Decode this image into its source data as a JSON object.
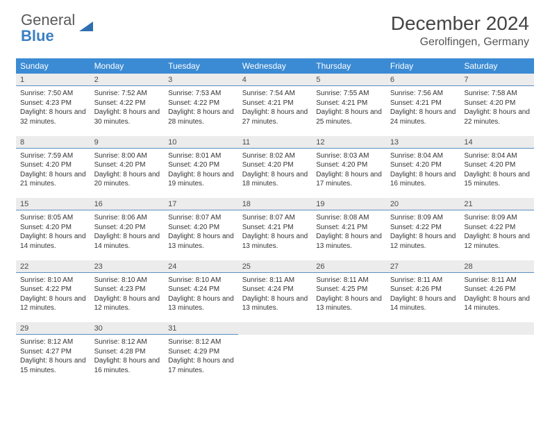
{
  "logo": {
    "text1": "General",
    "text2": "Blue"
  },
  "title": "December 2024",
  "location": "Gerolfingen, Germany",
  "colors": {
    "header_bg": "#3b8bd4",
    "header_text": "#ffffff",
    "daynum_bg": "#ececec",
    "daynum_border": "#5c8fbf",
    "body_text": "#333333",
    "logo_gray": "#5a5a5a",
    "logo_blue": "#3b7fc4"
  },
  "weekdays": [
    "Sunday",
    "Monday",
    "Tuesday",
    "Wednesday",
    "Thursday",
    "Friday",
    "Saturday"
  ],
  "weeks": [
    [
      {
        "n": "1",
        "sr": "7:50 AM",
        "ss": "4:23 PM",
        "dl": "8 hours and 32 minutes."
      },
      {
        "n": "2",
        "sr": "7:52 AM",
        "ss": "4:22 PM",
        "dl": "8 hours and 30 minutes."
      },
      {
        "n": "3",
        "sr": "7:53 AM",
        "ss": "4:22 PM",
        "dl": "8 hours and 28 minutes."
      },
      {
        "n": "4",
        "sr": "7:54 AM",
        "ss": "4:21 PM",
        "dl": "8 hours and 27 minutes."
      },
      {
        "n": "5",
        "sr": "7:55 AM",
        "ss": "4:21 PM",
        "dl": "8 hours and 25 minutes."
      },
      {
        "n": "6",
        "sr": "7:56 AM",
        "ss": "4:21 PM",
        "dl": "8 hours and 24 minutes."
      },
      {
        "n": "7",
        "sr": "7:58 AM",
        "ss": "4:20 PM",
        "dl": "8 hours and 22 minutes."
      }
    ],
    [
      {
        "n": "8",
        "sr": "7:59 AM",
        "ss": "4:20 PM",
        "dl": "8 hours and 21 minutes."
      },
      {
        "n": "9",
        "sr": "8:00 AM",
        "ss": "4:20 PM",
        "dl": "8 hours and 20 minutes."
      },
      {
        "n": "10",
        "sr": "8:01 AM",
        "ss": "4:20 PM",
        "dl": "8 hours and 19 minutes."
      },
      {
        "n": "11",
        "sr": "8:02 AM",
        "ss": "4:20 PM",
        "dl": "8 hours and 18 minutes."
      },
      {
        "n": "12",
        "sr": "8:03 AM",
        "ss": "4:20 PM",
        "dl": "8 hours and 17 minutes."
      },
      {
        "n": "13",
        "sr": "8:04 AM",
        "ss": "4:20 PM",
        "dl": "8 hours and 16 minutes."
      },
      {
        "n": "14",
        "sr": "8:04 AM",
        "ss": "4:20 PM",
        "dl": "8 hours and 15 minutes."
      }
    ],
    [
      {
        "n": "15",
        "sr": "8:05 AM",
        "ss": "4:20 PM",
        "dl": "8 hours and 14 minutes."
      },
      {
        "n": "16",
        "sr": "8:06 AM",
        "ss": "4:20 PM",
        "dl": "8 hours and 14 minutes."
      },
      {
        "n": "17",
        "sr": "8:07 AM",
        "ss": "4:20 PM",
        "dl": "8 hours and 13 minutes."
      },
      {
        "n": "18",
        "sr": "8:07 AM",
        "ss": "4:21 PM",
        "dl": "8 hours and 13 minutes."
      },
      {
        "n": "19",
        "sr": "8:08 AM",
        "ss": "4:21 PM",
        "dl": "8 hours and 13 minutes."
      },
      {
        "n": "20",
        "sr": "8:09 AM",
        "ss": "4:22 PM",
        "dl": "8 hours and 12 minutes."
      },
      {
        "n": "21",
        "sr": "8:09 AM",
        "ss": "4:22 PM",
        "dl": "8 hours and 12 minutes."
      }
    ],
    [
      {
        "n": "22",
        "sr": "8:10 AM",
        "ss": "4:22 PM",
        "dl": "8 hours and 12 minutes."
      },
      {
        "n": "23",
        "sr": "8:10 AM",
        "ss": "4:23 PM",
        "dl": "8 hours and 12 minutes."
      },
      {
        "n": "24",
        "sr": "8:10 AM",
        "ss": "4:24 PM",
        "dl": "8 hours and 13 minutes."
      },
      {
        "n": "25",
        "sr": "8:11 AM",
        "ss": "4:24 PM",
        "dl": "8 hours and 13 minutes."
      },
      {
        "n": "26",
        "sr": "8:11 AM",
        "ss": "4:25 PM",
        "dl": "8 hours and 13 minutes."
      },
      {
        "n": "27",
        "sr": "8:11 AM",
        "ss": "4:26 PM",
        "dl": "8 hours and 14 minutes."
      },
      {
        "n": "28",
        "sr": "8:11 AM",
        "ss": "4:26 PM",
        "dl": "8 hours and 14 minutes."
      }
    ],
    [
      {
        "n": "29",
        "sr": "8:12 AM",
        "ss": "4:27 PM",
        "dl": "8 hours and 15 minutes."
      },
      {
        "n": "30",
        "sr": "8:12 AM",
        "ss": "4:28 PM",
        "dl": "8 hours and 16 minutes."
      },
      {
        "n": "31",
        "sr": "8:12 AM",
        "ss": "4:29 PM",
        "dl": "8 hours and 17 minutes."
      },
      null,
      null,
      null,
      null
    ]
  ],
  "labels": {
    "sunrise": "Sunrise:",
    "sunset": "Sunset:",
    "daylight": "Daylight:"
  }
}
